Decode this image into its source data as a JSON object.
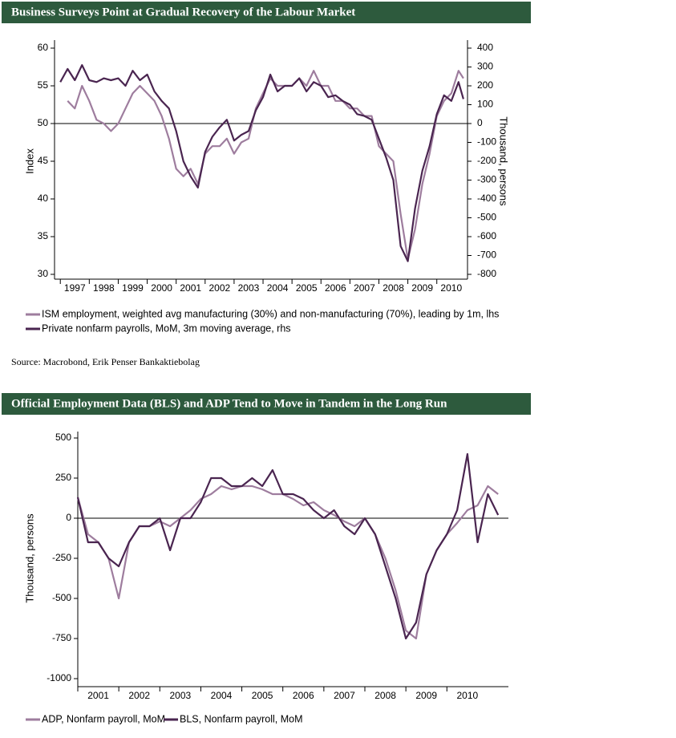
{
  "chart_data": [
    {
      "type": "line",
      "title": "Business Surveys Point at Gradual Recovery of the Labour Market",
      "x": [
        1997.0,
        1997.25,
        1997.5,
        1997.75,
        1998.0,
        1998.25,
        1998.5,
        1998.75,
        1999.0,
        1999.25,
        1999.5,
        1999.75,
        2000.0,
        2000.25,
        2000.5,
        2000.75,
        2001.0,
        2001.25,
        2001.5,
        2001.75,
        2002.0,
        2002.25,
        2002.5,
        2002.75,
        2003.0,
        2003.25,
        2003.5,
        2003.75,
        2004.0,
        2004.25,
        2004.5,
        2004.75,
        2005.0,
        2005.25,
        2005.5,
        2005.75,
        2006.0,
        2006.25,
        2006.5,
        2006.75,
        2007.0,
        2007.25,
        2007.5,
        2007.75,
        2008.0,
        2008.25,
        2008.5,
        2008.75,
        2009.0,
        2009.25,
        2009.5,
        2009.75,
        2010.0,
        2010.25,
        2010.5,
        2010.75,
        2010.92
      ],
      "series": [
        {
          "name": "ISM employment, weighted avg manufacturing (30%) and non-manufacturing (70%), leading by 1m, lhs",
          "color": "#9e7d9e",
          "values": [
            null,
            53,
            52,
            55,
            53,
            50.5,
            50,
            49,
            50,
            52,
            54,
            55,
            54,
            53,
            51,
            48,
            44,
            43,
            44,
            42,
            46,
            47,
            47,
            48,
            46,
            47.5,
            48,
            52,
            54,
            56,
            55,
            55,
            55,
            56,
            55,
            57,
            55,
            55,
            53,
            53,
            52,
            52,
            51,
            51,
            47,
            46,
            45,
            38,
            32,
            36,
            42,
            46,
            51,
            53,
            54,
            57,
            56
          ]
        },
        {
          "name": "Private nonfarm payrolls, MoM, 3m moving average, rhs",
          "color": "#4a2550",
          "axis": "y2",
          "values": [
            220,
            290,
            230,
            310,
            230,
            220,
            240,
            230,
            240,
            200,
            280,
            230,
            260,
            170,
            120,
            80,
            -40,
            -200,
            -280,
            -340,
            -150,
            -70,
            -20,
            20,
            -90,
            -60,
            -40,
            70,
            140,
            260,
            170,
            200,
            200,
            240,
            170,
            220,
            200,
            140,
            150,
            120,
            100,
            50,
            40,
            20,
            -80,
            -180,
            -300,
            -650,
            -730,
            -450,
            -250,
            -120,
            50,
            150,
            120,
            220,
            130
          ]
        }
      ],
      "xlim": [
        1996.8,
        2011.06
      ],
      "xticks": [
        1997,
        1998,
        1999,
        2000,
        2001,
        2002,
        2003,
        2004,
        2005,
        2006,
        2007,
        2008,
        2009,
        2010
      ],
      "ylim": [
        30,
        60
      ],
      "yticks": [
        30,
        35,
        40,
        45,
        50,
        55,
        60
      ],
      "y2lim": [
        -800,
        400
      ],
      "y2ticks": [
        -800,
        -700,
        -600,
        -500,
        -400,
        -300,
        -200,
        -100,
        0,
        100,
        200,
        300,
        400
      ],
      "hline": 50,
      "y_label": "Index",
      "y2_label": "Thousand, persons",
      "source": "Source: Macrobond, Erik Penser Bankaktiebolag"
    },
    {
      "type": "line",
      "title": "Official Employment Data (BLS) and ADP Tend to Move in Tandem in the Long Run",
      "x": [
        2001.0,
        2001.25,
        2001.5,
        2001.75,
        2002.0,
        2002.25,
        2002.5,
        2002.75,
        2003.0,
        2003.25,
        2003.5,
        2003.75,
        2004.0,
        2004.25,
        2004.5,
        2004.75,
        2005.0,
        2005.25,
        2005.5,
        2005.75,
        2006.0,
        2006.25,
        2006.5,
        2006.75,
        2007.0,
        2007.25,
        2007.5,
        2007.75,
        2008.0,
        2008.25,
        2008.5,
        2008.75,
        2009.0,
        2009.25,
        2009.5,
        2009.75,
        2010.0,
        2010.25,
        2010.5,
        2010.75,
        2011.0,
        2011.25
      ],
      "series": [
        {
          "name": "ADP, Nonfarm payroll, MoM",
          "color": "#9e7d9e",
          "values": [
            130,
            -100,
            -150,
            -250,
            -500,
            -150,
            -50,
            -50,
            -20,
            -50,
            0,
            50,
            120,
            150,
            200,
            180,
            200,
            200,
            180,
            150,
            150,
            120,
            80,
            100,
            50,
            20,
            -20,
            -50,
            0,
            -100,
            -250,
            -450,
            -700,
            -750,
            -350,
            -200,
            -100,
            -30,
            50,
            80,
            200,
            150
          ]
        },
        {
          "name": "BLS, Nonfarm payroll, MoM",
          "color": "#4a2550",
          "values": [
            130,
            -150,
            -150,
            -250,
            -300,
            -150,
            -50,
            -50,
            0,
            -200,
            0,
            0,
            100,
            250,
            250,
            200,
            200,
            250,
            200,
            300,
            150,
            150,
            120,
            50,
            0,
            50,
            -50,
            -100,
            0,
            -100,
            -300,
            -500,
            -750,
            -650,
            -350,
            -200,
            -100,
            50,
            400,
            -150,
            150,
            20
          ]
        }
      ],
      "xlim": [
        2001.0,
        2011.5
      ],
      "xticks": [
        2001,
        2002,
        2003,
        2004,
        2005,
        2006,
        2007,
        2008,
        2009,
        2010
      ],
      "ylim": [
        -1000,
        500
      ],
      "yticks": [
        -1000,
        -750,
        -500,
        -250,
        0,
        250,
        500
      ],
      "hline": 0,
      "y_label": "Thousand, persons"
    }
  ]
}
